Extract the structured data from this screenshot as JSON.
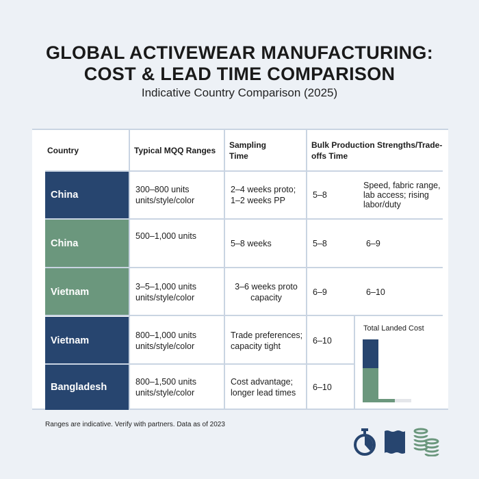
{
  "title_line1": "GLOBAL ACTIVEWEAR MANUFACTURING:",
  "title_line2": "COST & LEAD TIME COMPARISON",
  "subtitle": "Indicative Country Comparison (2025)",
  "headers": {
    "country": "Country",
    "mqq": "Typical MQQ Ranges",
    "sampling": "Sampling Time",
    "bulk": "Bulk Production Strengths/Trade-offs Time"
  },
  "rows": [
    {
      "country": "China",
      "mqq": "300–800 units units/style/color",
      "sampling": "2–4 weeks proto; 1–2 weeks PP",
      "bulk": "5–8",
      "extra": "Speed, fabric range, lab access; rising labor/duty"
    },
    {
      "country": "China",
      "mqq": "500–1,000 units",
      "sampling": "5–8 weeks",
      "bulk": "5–8",
      "extra": "6–9"
    },
    {
      "country": "Vietnam",
      "mqq": "3–5–1,000 units units/style/color",
      "sampling": "3–6 weeks proto capacity",
      "bulk": "6–9",
      "extra": "6–10"
    },
    {
      "country": "Vietnam",
      "mqq": "800–1,000 units units/style/color",
      "sampling": "Trade preferences; capacity tight",
      "bulk": "6–10"
    },
    {
      "country": "Bangladesh",
      "mqq": "800–1,500 units units/style/color",
      "sampling": "Cost advantage; longer lead times",
      "bulk": "6–10"
    }
  ],
  "mini_chart": {
    "title": "Total Landed Cost",
    "colors": {
      "navy": "#27456f",
      "green": "#6b977d"
    }
  },
  "footnote": "Ranges are indicative. Verify with partners. Data as of 2023"
}
